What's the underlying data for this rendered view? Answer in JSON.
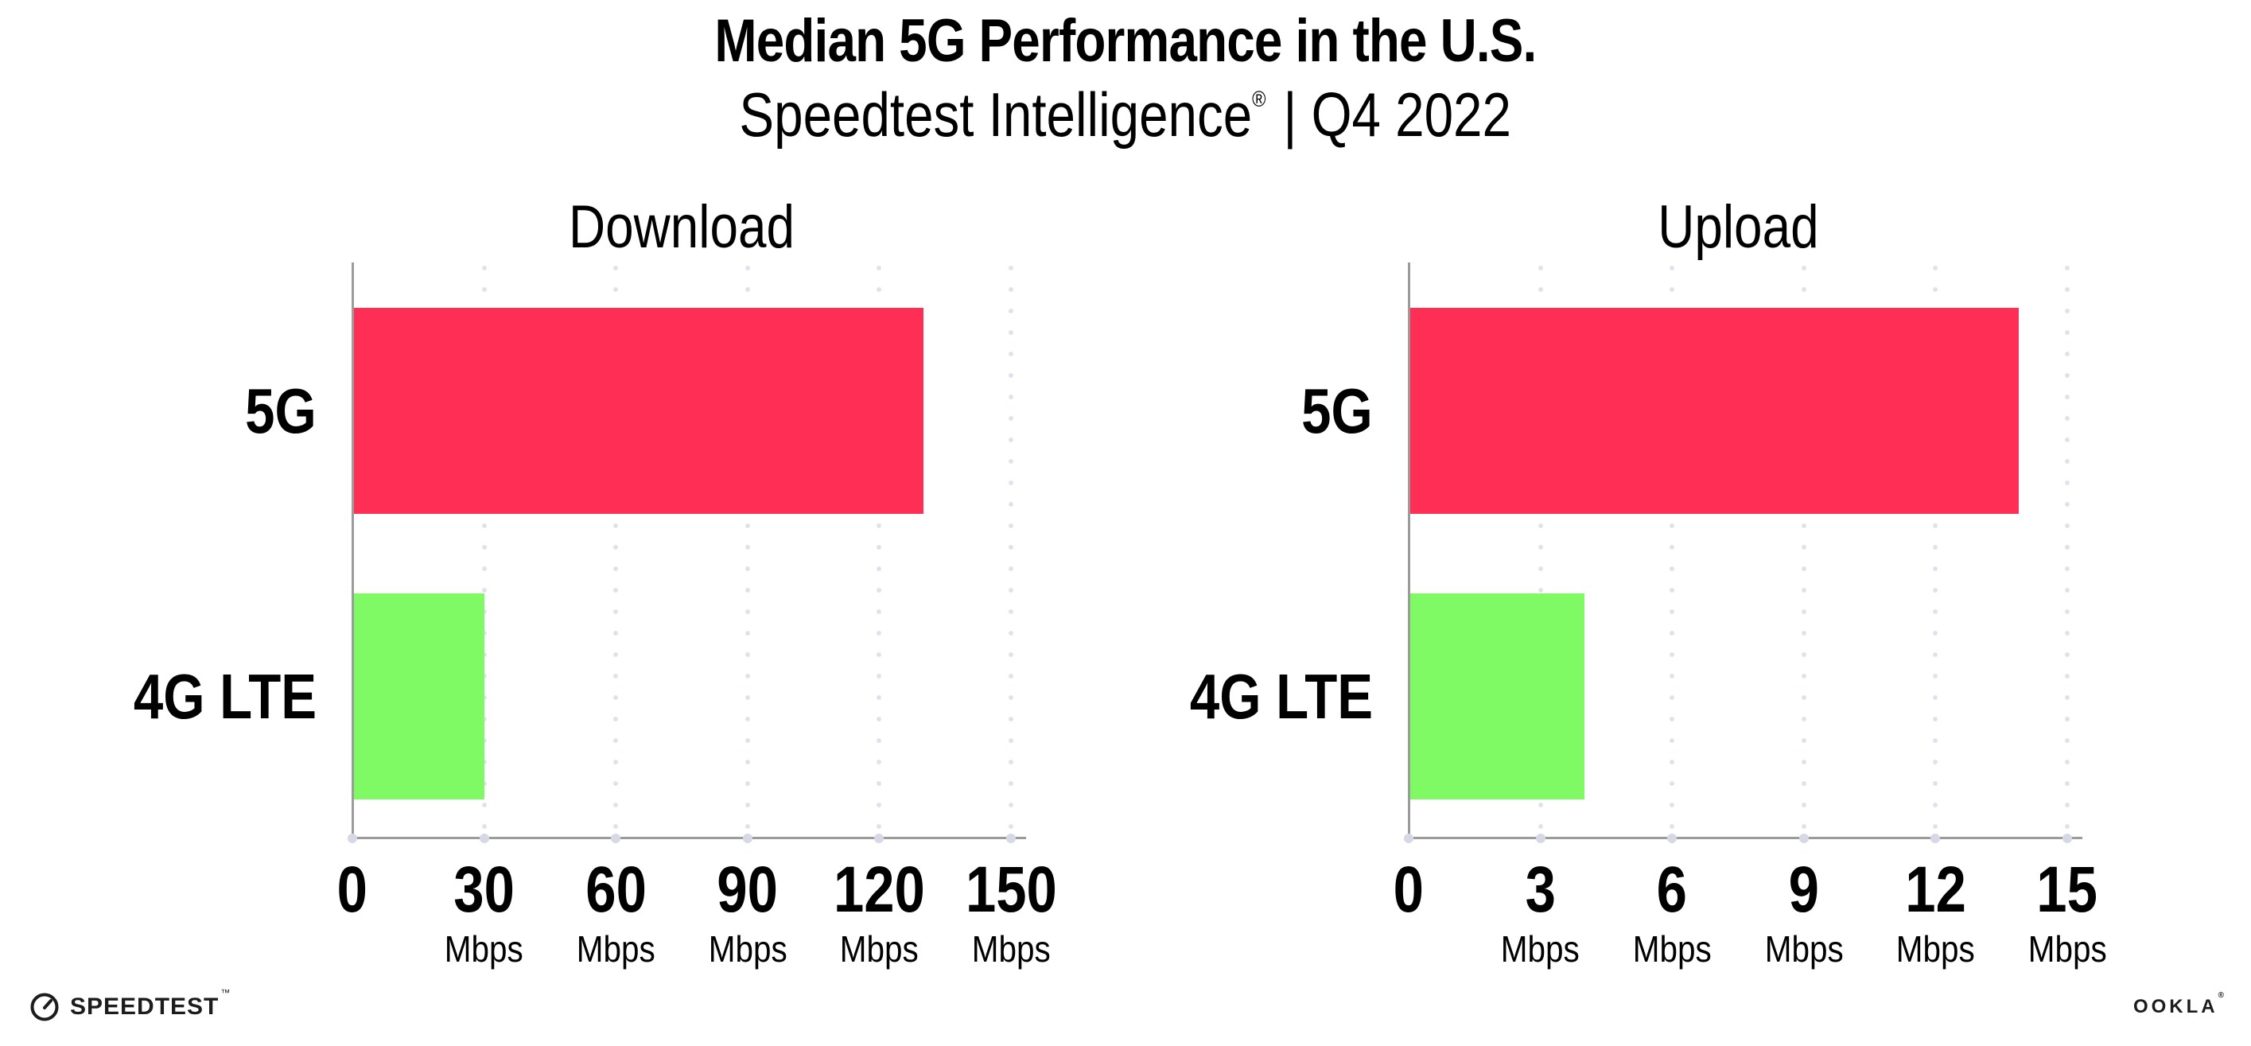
{
  "header": {
    "title": "Median 5G Performance in the U.S.",
    "subtitle_brand": "Speedtest Intelligence",
    "subtitle_reg": "®",
    "subtitle_rest": "| Q4 2022"
  },
  "chart_data": [
    {
      "type": "bar",
      "orientation": "horizontal",
      "title": "Download",
      "categories": [
        "5G",
        "4G LTE"
      ],
      "values": [
        130,
        30
      ],
      "unit": "Mbps",
      "xlim": [
        0,
        150
      ],
      "xticks": [
        0,
        30,
        60,
        90,
        120,
        150
      ],
      "bar_colors": [
        "#ff2e55",
        "#80fa64"
      ],
      "grid": "vertical-dotted",
      "legend": "none"
    },
    {
      "type": "bar",
      "orientation": "horizontal",
      "title": "Upload",
      "categories": [
        "5G",
        "4G LTE"
      ],
      "values": [
        13.9,
        4
      ],
      "unit": "Mbps",
      "xlim": [
        0,
        15
      ],
      "xticks": [
        0,
        3,
        6,
        9,
        12,
        15
      ],
      "bar_colors": [
        "#ff2e55",
        "#80fa64"
      ],
      "grid": "vertical-dotted",
      "legend": "none"
    }
  ],
  "footer": {
    "speedtest_label": "SPEEDTEST",
    "speedtest_tm": "™",
    "ookla_label": "OOKLA",
    "ookla_reg": "®"
  },
  "colors": {
    "bar_5g": "#ff2e55",
    "bar_4g_lte": "#80fa64",
    "axis_line": "#9b9b9b",
    "gridline_dots": "#dfe1ec",
    "text": "#000000"
  }
}
